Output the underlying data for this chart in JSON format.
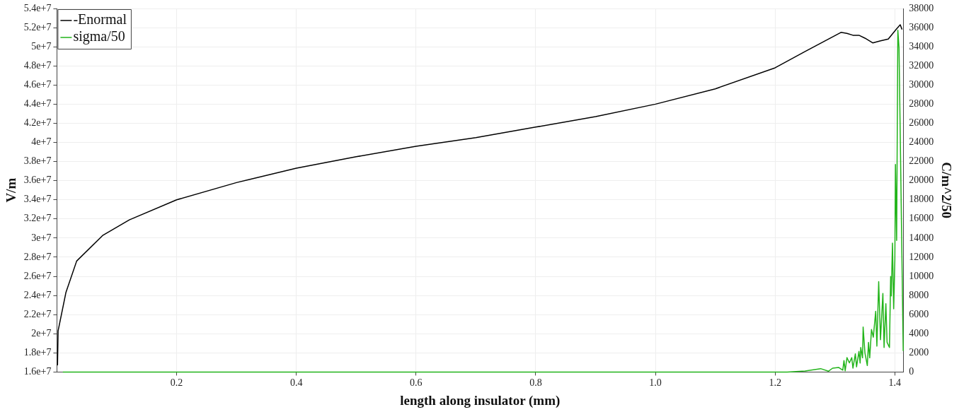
{
  "chart_data": {
    "type": "line",
    "xlabel": "length along insulator (mm)",
    "ylabel": "V/m",
    "y2label": "C/m^2/50",
    "xlim": [
      0,
      1.414
    ],
    "xticks": [
      0.2,
      0.4,
      0.6,
      0.8,
      {
        "value": 1,
        "label": "1.0"
      },
      1.2,
      1.4
    ],
    "ylim": [
      16000000,
      54000000
    ],
    "yticks": [
      {
        "value": 16000000,
        "label": "1.6e+7"
      },
      {
        "value": 18000000,
        "label": "1.8e+7"
      },
      {
        "value": 20000000,
        "label": "2e+7"
      },
      {
        "value": 22000000,
        "label": "2.2e+7"
      },
      {
        "value": 24000000,
        "label": "2.4e+7"
      },
      {
        "value": 26000000,
        "label": "2.6e+7"
      },
      {
        "value": 28000000,
        "label": "2.8e+7"
      },
      {
        "value": 30000000,
        "label": "3e+7"
      },
      {
        "value": 32000000,
        "label": "3.2e+7"
      },
      {
        "value": 34000000,
        "label": "3.4e+7"
      },
      {
        "value": 36000000,
        "label": "3.6e+7"
      },
      {
        "value": 38000000,
        "label": "3.8e+7"
      },
      {
        "value": 40000000,
        "label": "4e+7"
      },
      {
        "value": 42000000,
        "label": "4.2e+7"
      },
      {
        "value": 44000000,
        "label": "4.4e+7"
      },
      {
        "value": 46000000,
        "label": "4.6e+7"
      },
      {
        "value": 48000000,
        "label": "4.8e+7"
      },
      {
        "value": 50000000,
        "label": "5e+7"
      },
      {
        "value": 52000000,
        "label": "5.2e+7"
      },
      {
        "value": 54000000,
        "label": "5.4e+7"
      }
    ],
    "y2lim": [
      0,
      38000
    ],
    "y2ticks": [
      0,
      2000,
      4000,
      6000,
      8000,
      10000,
      12000,
      14000,
      16000,
      18000,
      20000,
      22000,
      24000,
      26000,
      28000,
      30000,
      32000,
      34000,
      36000,
      38000
    ],
    "grid": true,
    "legend": "top left",
    "marker": "none",
    "line_style": "solid",
    "series": [
      {
        "name": "-Enormal",
        "color": "#000000",
        "x": [
          0.001,
          0.002,
          0.015,
          0.033,
          0.077,
          0.121,
          0.2,
          0.3,
          0.4,
          0.5,
          0.6,
          0.7,
          0.8,
          0.9,
          1.0,
          1.1,
          1.2,
          1.25,
          1.31,
          1.32,
          1.33,
          1.34,
          1.35,
          1.363,
          1.375,
          1.389,
          1.402,
          1.409,
          1.412
        ],
        "values": [
          16700000,
          20300000,
          24300000,
          27600000,
          30300000,
          31900000,
          34000000,
          35800000,
          37300000,
          38500000,
          39600000,
          40500000,
          41600000,
          42700000,
          44000000,
          45600000,
          47800000,
          49500000,
          51500000,
          51400000,
          51200000,
          51200000,
          50900000,
          50400000,
          50600000,
          50800000,
          51800000,
          52300000,
          51800000
        ]
      },
      {
        "name": "sigma/50",
        "color": "#22b41a",
        "axis": "y2",
        "x": [
          0.01,
          1.22,
          1.25,
          1.276,
          1.289,
          1.296,
          1.306,
          1.313,
          1.315,
          1.317,
          1.32,
          1.324,
          1.328,
          1.33,
          1.334,
          1.336,
          1.34,
          1.342,
          1.343,
          1.346,
          1.347,
          1.35,
          1.354,
          1.356,
          1.358,
          1.361,
          1.364,
          1.368,
          1.37,
          1.373,
          1.376,
          1.38,
          1.382,
          1.385,
          1.387,
          1.391,
          1.393,
          1.394,
          1.396,
          1.398,
          1.4,
          1.401,
          1.403,
          1.405,
          1.407,
          1.414
        ],
        "values": [
          0,
          0,
          100,
          350,
          80,
          400,
          480,
          190,
          1200,
          130,
          1500,
          950,
          1500,
          400,
          1900,
          540,
          2150,
          940,
          2560,
          1480,
          4700,
          2000,
          670,
          3100,
          1480,
          4450,
          3640,
          6340,
          2700,
          9440,
          3370,
          8220,
          2560,
          7140,
          3100,
          2560,
          9980,
          7950,
          13480,
          6600,
          11730,
          21700,
          13750,
          35720,
          33840,
          2200
        ]
      }
    ]
  }
}
